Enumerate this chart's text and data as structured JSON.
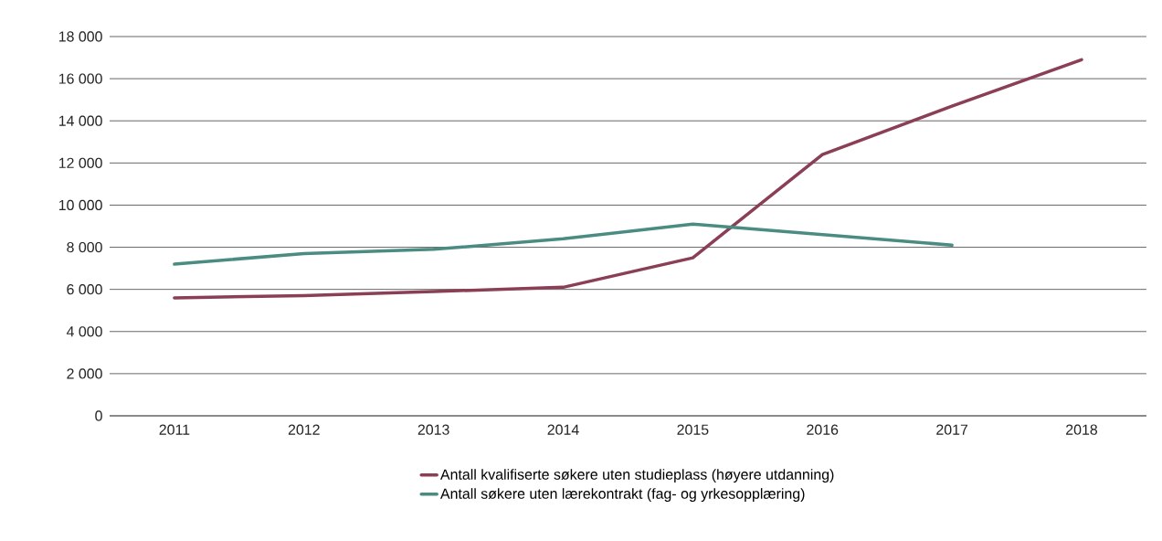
{
  "chart_data": {
    "type": "line",
    "categories": [
      "2011",
      "2012",
      "2013",
      "2014",
      "2015",
      "2016",
      "2017",
      "2018"
    ],
    "series": [
      {
        "name": "Antall kvalifiserte søkere uten studieplass (høyere utdanning)",
        "color": "#8b3f55",
        "values": [
          5600,
          5700,
          5900,
          6100,
          7500,
          12400,
          14700,
          16900
        ]
      },
      {
        "name": "Antall søkere uten lærekontrakt (fag- og yrkesopplæring)",
        "color": "#4a8c82",
        "values": [
          7200,
          7700,
          7900,
          8400,
          9100,
          8600,
          8100,
          null
        ]
      }
    ],
    "ylim": [
      0,
      18000
    ],
    "yticks": [
      0,
      {
        "value": 2000,
        "label": "2 000"
      },
      {
        "value": 4000,
        "label": "4 000"
      },
      {
        "value": 6000,
        "label": "6 000"
      },
      {
        "value": 8000,
        "label": "8 000"
      },
      {
        "value": 10000,
        "label": "10 000"
      },
      {
        "value": 12000,
        "label": "12 000"
      },
      {
        "value": 14000,
        "label": "14 000"
      },
      {
        "value": 16000,
        "label": "16 000"
      },
      {
        "value": 18000,
        "label": "18 000"
      }
    ],
    "grid": "y",
    "legend": "bottom",
    "marker": "none",
    "line_style": "solid"
  }
}
